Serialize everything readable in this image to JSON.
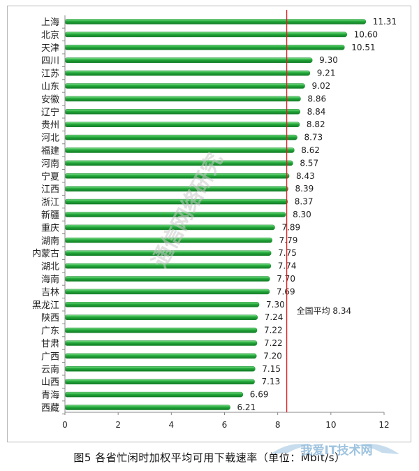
{
  "chart_data": {
    "type": "bar",
    "orientation": "horizontal",
    "categories": [
      "上海",
      "北京",
      "天津",
      "四川",
      "江苏",
      "山东",
      "安徽",
      "辽宁",
      "贵州",
      "河北",
      "福建",
      "河南",
      "宁夏",
      "江西",
      "浙江",
      "新疆",
      "重庆",
      "湖南",
      "内蒙古",
      "湖北",
      "海南",
      "吉林",
      "黑龙江",
      "陕西",
      "广东",
      "甘肃",
      "广西",
      "云南",
      "山西",
      "青海",
      "西藏"
    ],
    "values": [
      11.31,
      10.6,
      10.51,
      9.3,
      9.21,
      9.02,
      8.86,
      8.84,
      8.82,
      8.73,
      8.62,
      8.57,
      8.43,
      8.39,
      8.37,
      8.3,
      7.89,
      7.79,
      7.75,
      7.74,
      7.7,
      7.69,
      7.3,
      7.24,
      7.22,
      7.22,
      7.2,
      7.15,
      7.13,
      6.69,
      6.21
    ],
    "value_labels": [
      "11.31",
      "10.60",
      "10.51",
      "9.30",
      "9.21",
      "9.02",
      "8.86",
      "8.84",
      "8.82",
      "8.73",
      "8.62",
      "8.57",
      "8.43",
      "8.39",
      "8.37",
      "8.30",
      "7.89",
      "7.79",
      "7.75",
      "7.74",
      "7.70",
      "7.69",
      "7.30",
      "7.24",
      "7.22",
      "7.22",
      "7.20",
      "7.15",
      "7.13",
      "6.69",
      "6.21"
    ],
    "xlim": [
      0,
      12
    ],
    "xticks": [
      0,
      2,
      4,
      6,
      8,
      10,
      12
    ],
    "grid": false,
    "bar_color": "#22a83a",
    "average_line": {
      "value": 8.34,
      "label": "全国平均 8.34",
      "color": "#e02020"
    }
  },
  "caption": "图5 各省忙闲时加权平均可用下载速率（单位：Mbit/s）",
  "watermark": {
    "diagonal": "通信网络研究",
    "corner": "我爱IT技术网"
  }
}
